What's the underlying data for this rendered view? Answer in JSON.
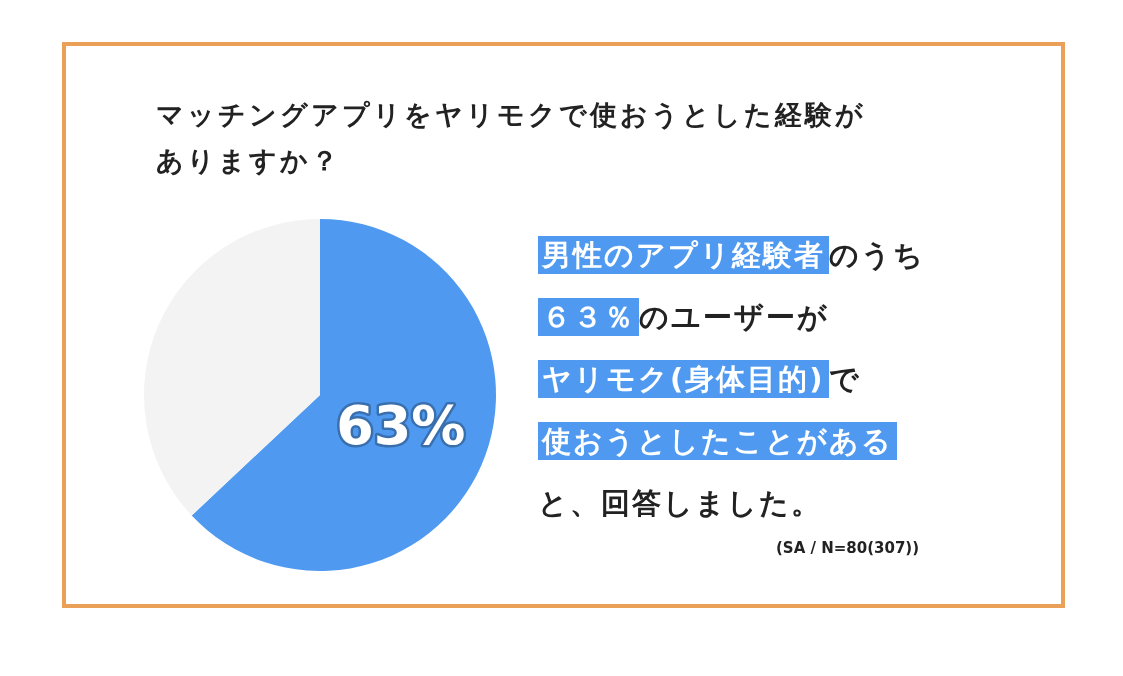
{
  "chart_data": {
    "type": "pie",
    "title": "マッチングアプリをヤリモクで使おうとした経験がありますか？",
    "categories": [
      null,
      null
    ],
    "values": [
      63,
      37
    ],
    "colors": [
      "#4f9af0",
      "#f3f3f3"
    ],
    "value_labels": [
      "63%",
      null
    ],
    "annotations": [
      "男性のアプリ経験者",
      "のうち",
      "６３％",
      "のユーザーが",
      "ヤリモク(身体目的)",
      "で",
      "使おうとしたことがある",
      "と、回答しました。",
      "(SA / N=80(307))"
    ]
  }
}
